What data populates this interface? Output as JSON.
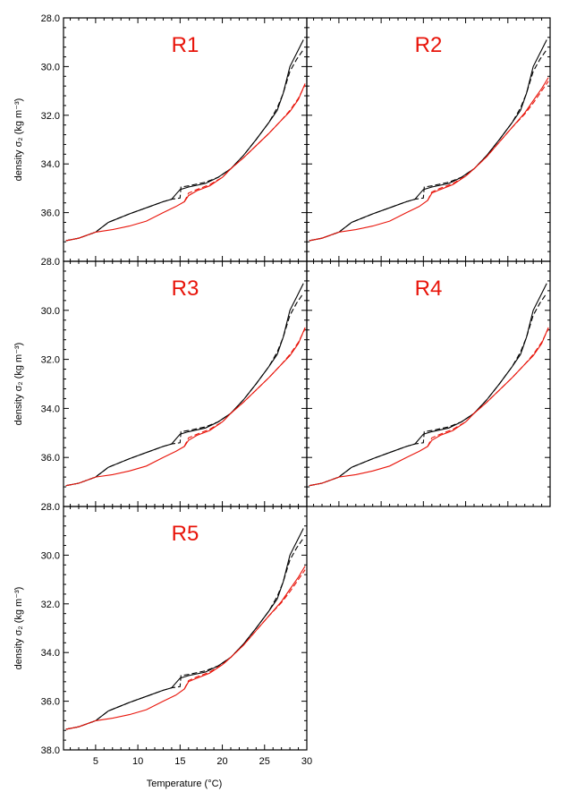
{
  "figure": {
    "xlabel": "Temperature (°C)",
    "ylabel": "density σ₂ (kg m⁻³)",
    "label_color": "#e8140a"
  },
  "chart_data": [
    {
      "type": "line",
      "panel_label": "R1",
      "xlim": [
        1.2,
        30
      ],
      "ylim": [
        38.0,
        28.0
      ],
      "xticks": [
        5,
        10,
        15,
        20,
        25,
        30
      ],
      "yticks": [
        28.0,
        30.0,
        32.0,
        34.0,
        36.0,
        38.0
      ],
      "ytick_labels": [
        "28.0",
        "30.0",
        "32.0",
        "34.0",
        "36.0",
        ""
      ],
      "series": [
        {
          "color": "#000000",
          "dash": "solid",
          "x": [
            1.5,
            3,
            5,
            6.5,
            9,
            11,
            13,
            14,
            14.5,
            15,
            16,
            18,
            19.5,
            21,
            22.5,
            24,
            25.5,
            26.5,
            27.2,
            28,
            28.8,
            29.6
          ],
          "y": [
            37.15,
            37.05,
            36.8,
            36.4,
            36.05,
            35.8,
            35.55,
            35.45,
            35.25,
            35.05,
            34.95,
            34.8,
            34.55,
            34.2,
            33.65,
            33.0,
            32.3,
            31.8,
            31.1,
            30.0,
            29.45,
            28.9
          ]
        },
        {
          "color": "#000000",
          "dash": "dashed",
          "x": [
            1.5,
            3,
            5,
            6.5,
            9,
            11,
            13,
            14,
            15,
            15.1,
            16,
            18,
            19.5,
            21,
            22.5,
            24,
            25.5,
            26.5,
            27.2,
            28,
            28.8,
            29.6
          ],
          "y": [
            37.15,
            37.05,
            36.8,
            36.4,
            36.05,
            35.8,
            35.55,
            35.45,
            35.4,
            34.95,
            34.9,
            34.75,
            34.55,
            34.2,
            33.65,
            33.0,
            32.3,
            31.7,
            31.1,
            30.2,
            29.7,
            29.3
          ]
        },
        {
          "color": "#e8140a",
          "dash": "solid",
          "x": [
            1.5,
            3,
            5,
            7,
            9,
            11,
            13,
            14.5,
            15.5,
            16,
            17,
            18.5,
            20,
            21,
            22.5,
            24,
            25.5,
            27,
            28,
            29,
            29.8
          ],
          "y": [
            37.15,
            37.05,
            36.8,
            36.7,
            36.55,
            36.35,
            36.0,
            35.75,
            35.55,
            35.3,
            35.1,
            34.9,
            34.55,
            34.2,
            33.75,
            33.25,
            32.75,
            32.2,
            31.85,
            31.35,
            30.7
          ]
        },
        {
          "color": "#e8140a",
          "dash": "dashed",
          "x": [
            15.5,
            16,
            17,
            18.5,
            20,
            21,
            22.5,
            24,
            25.5,
            27,
            28,
            29,
            29.8
          ],
          "y": [
            35.55,
            35.2,
            35.05,
            34.85,
            34.55,
            34.2,
            33.75,
            33.25,
            32.75,
            32.2,
            31.8,
            31.3,
            30.75
          ]
        }
      ]
    },
    {
      "type": "line",
      "panel_label": "R2",
      "xlim": [
        1.2,
        30
      ],
      "ylim": [
        38.0,
        28.0
      ],
      "xticks": [
        5,
        10,
        15,
        20,
        25,
        30
      ],
      "yticks": [
        28.0,
        30.0,
        32.0,
        34.0,
        36.0,
        38.0
      ],
      "ytick_labels": [
        "",
        "",
        "",
        "",
        "",
        ""
      ],
      "series": [
        {
          "color": "#000000",
          "dash": "solid",
          "x": [
            1.5,
            3,
            5,
            6.5,
            9,
            11,
            13,
            14,
            14.5,
            15,
            16,
            18,
            19.5,
            21,
            22.5,
            24,
            25.5,
            26.5,
            27.2,
            28,
            28.8,
            29.6
          ],
          "y": [
            37.15,
            37.05,
            36.8,
            36.4,
            36.05,
            35.8,
            35.55,
            35.45,
            35.25,
            35.05,
            34.95,
            34.8,
            34.55,
            34.2,
            33.65,
            33.0,
            32.3,
            31.8,
            31.1,
            30.0,
            29.45,
            28.9
          ]
        },
        {
          "color": "#000000",
          "dash": "dashed",
          "x": [
            1.5,
            3,
            5,
            6.5,
            9,
            11,
            13,
            14,
            15,
            15.1,
            16,
            18,
            19.5,
            21,
            22.5,
            24,
            25.5,
            26.5,
            27.2,
            28,
            28.8,
            29.6
          ],
          "y": [
            37.15,
            37.05,
            36.8,
            36.4,
            36.05,
            35.8,
            35.55,
            35.45,
            35.4,
            34.95,
            34.9,
            34.75,
            34.55,
            34.2,
            33.65,
            33.0,
            32.3,
            31.7,
            31.1,
            30.2,
            29.7,
            29.3
          ]
        },
        {
          "color": "#e8140a",
          "dash": "solid",
          "x": [
            1.5,
            3,
            5,
            7,
            9,
            11,
            13,
            14.5,
            15.5,
            16,
            17,
            18.5,
            20,
            21,
            22.5,
            24,
            25.5,
            27,
            28,
            29,
            29.8
          ],
          "y": [
            37.15,
            37.05,
            36.8,
            36.7,
            36.55,
            36.35,
            36.0,
            35.75,
            35.5,
            35.2,
            35.05,
            34.85,
            34.5,
            34.2,
            33.7,
            33.1,
            32.5,
            31.9,
            31.4,
            30.9,
            30.45
          ]
        },
        {
          "color": "#e8140a",
          "dash": "dashed",
          "x": [
            15.5,
            16,
            17,
            18.5,
            20,
            21,
            22.5,
            24,
            25.5,
            27,
            28,
            29,
            29.8
          ],
          "y": [
            35.5,
            35.15,
            35.0,
            34.8,
            34.5,
            34.2,
            33.7,
            33.1,
            32.5,
            31.95,
            31.5,
            31.0,
            30.6
          ]
        }
      ]
    },
    {
      "type": "line",
      "panel_label": "R3",
      "xlim": [
        1.2,
        30
      ],
      "ylim": [
        38.0,
        28.0
      ],
      "xticks": [
        5,
        10,
        15,
        20,
        25,
        30
      ],
      "yticks": [
        28.0,
        30.0,
        32.0,
        34.0,
        36.0,
        38.0
      ],
      "ytick_labels": [
        "28.0",
        "30.0",
        "32.0",
        "34.0",
        "36.0",
        ""
      ],
      "series": [
        {
          "color": "#000000",
          "dash": "solid",
          "x": [
            1.5,
            3,
            5,
            6.5,
            9,
            11,
            13,
            14,
            14.5,
            15,
            16,
            18,
            19.5,
            21,
            22.5,
            24,
            25.5,
            26.5,
            27.2,
            28,
            28.8,
            29.6
          ],
          "y": [
            37.15,
            37.05,
            36.8,
            36.4,
            36.05,
            35.8,
            35.55,
            35.45,
            35.25,
            35.05,
            34.95,
            34.8,
            34.55,
            34.2,
            33.65,
            33.0,
            32.3,
            31.8,
            31.1,
            30.0,
            29.45,
            28.9
          ]
        },
        {
          "color": "#000000",
          "dash": "dashed",
          "x": [
            1.5,
            3,
            5,
            6.5,
            9,
            11,
            13,
            14,
            15,
            15.1,
            16,
            18,
            19.5,
            21,
            22.5,
            24,
            25.5,
            26.5,
            27.2,
            28,
            28.8,
            29.6
          ],
          "y": [
            37.15,
            37.05,
            36.8,
            36.4,
            36.05,
            35.8,
            35.55,
            35.45,
            35.4,
            34.95,
            34.9,
            34.75,
            34.55,
            34.2,
            33.65,
            33.0,
            32.3,
            31.7,
            31.1,
            30.2,
            29.7,
            29.3
          ]
        },
        {
          "color": "#e8140a",
          "dash": "solid",
          "x": [
            1.5,
            3,
            5,
            7,
            9,
            11,
            13,
            14.5,
            15.5,
            16,
            17,
            18.5,
            20,
            21,
            22.5,
            24,
            25.5,
            27,
            28,
            29,
            29.8
          ],
          "y": [
            37.15,
            37.05,
            36.8,
            36.7,
            36.55,
            36.35,
            36.0,
            35.75,
            35.55,
            35.3,
            35.1,
            34.9,
            34.55,
            34.2,
            33.75,
            33.25,
            32.75,
            32.2,
            31.85,
            31.35,
            30.7
          ]
        },
        {
          "color": "#e8140a",
          "dash": "dashed",
          "x": [
            15.5,
            16,
            17,
            18.5,
            20,
            21,
            22.5,
            24,
            25.5,
            27,
            28,
            29,
            29.8
          ],
          "y": [
            35.55,
            35.2,
            35.05,
            34.85,
            34.55,
            34.2,
            33.75,
            33.25,
            32.75,
            32.2,
            31.8,
            31.3,
            30.75
          ]
        }
      ]
    },
    {
      "type": "line",
      "panel_label": "R4",
      "xlim": [
        1.2,
        30
      ],
      "ylim": [
        38.0,
        28.0
      ],
      "xticks": [
        5,
        10,
        15,
        20,
        25,
        30
      ],
      "yticks": [
        28.0,
        30.0,
        32.0,
        34.0,
        36.0,
        38.0
      ],
      "ytick_labels": [
        "",
        "",
        "",
        "",
        "",
        ""
      ],
      "series": [
        {
          "color": "#000000",
          "dash": "solid",
          "x": [
            1.5,
            3,
            5,
            6.5,
            9,
            11,
            13,
            14,
            14.5,
            15,
            16,
            18,
            19.5,
            21,
            22.5,
            24,
            25.5,
            26.5,
            27.2,
            28,
            28.8,
            29.6
          ],
          "y": [
            37.15,
            37.05,
            36.8,
            36.4,
            36.05,
            35.8,
            35.55,
            35.45,
            35.25,
            35.05,
            34.95,
            34.8,
            34.55,
            34.2,
            33.65,
            33.0,
            32.3,
            31.8,
            31.1,
            30.0,
            29.45,
            28.9
          ]
        },
        {
          "color": "#000000",
          "dash": "dashed",
          "x": [
            1.5,
            3,
            5,
            6.5,
            9,
            11,
            13,
            14,
            15,
            15.1,
            16,
            18,
            19.5,
            21,
            22.5,
            24,
            25.5,
            26.5,
            27.2,
            28,
            28.8,
            29.6
          ],
          "y": [
            37.15,
            37.05,
            36.8,
            36.4,
            36.05,
            35.8,
            35.55,
            35.45,
            35.4,
            34.95,
            34.9,
            34.75,
            34.55,
            34.2,
            33.65,
            33.0,
            32.3,
            31.7,
            31.1,
            30.2,
            29.7,
            29.3
          ]
        },
        {
          "color": "#e8140a",
          "dash": "solid",
          "x": [
            1.5,
            3,
            5,
            7,
            9,
            11,
            13,
            14.5,
            15.5,
            16,
            17,
            18.5,
            20,
            21,
            22.5,
            24,
            25.5,
            27,
            28,
            29,
            29.8
          ],
          "y": [
            37.15,
            37.05,
            36.8,
            36.7,
            36.55,
            36.35,
            36.0,
            35.75,
            35.55,
            35.3,
            35.1,
            34.9,
            34.55,
            34.2,
            33.75,
            33.25,
            32.75,
            32.2,
            31.85,
            31.35,
            30.7
          ]
        },
        {
          "color": "#e8140a",
          "dash": "dashed",
          "x": [
            15.5,
            16,
            17,
            18.5,
            20,
            21,
            22.5,
            24,
            25.5,
            27,
            28,
            29,
            29.8
          ],
          "y": [
            35.55,
            35.2,
            35.05,
            34.85,
            34.55,
            34.2,
            33.75,
            33.25,
            32.75,
            32.2,
            31.8,
            31.3,
            30.75
          ]
        }
      ]
    },
    {
      "type": "line",
      "panel_label": "R5",
      "xlim": [
        1.2,
        30
      ],
      "ylim": [
        38.0,
        28.0
      ],
      "xticks": [
        5,
        10,
        15,
        20,
        25,
        30
      ],
      "xtick_labels": [
        "5",
        "10",
        "15",
        "20",
        "25",
        "30"
      ],
      "yticks": [
        28.0,
        30.0,
        32.0,
        34.0,
        36.0,
        38.0
      ],
      "ytick_labels": [
        "28.0",
        "30.0",
        "32.0",
        "34.0",
        "36.0",
        "38.0"
      ],
      "series": [
        {
          "color": "#000000",
          "dash": "solid",
          "x": [
            1.5,
            3,
            5,
            6.5,
            9,
            11,
            13,
            14,
            14.5,
            15,
            16,
            18,
            19.5,
            21,
            22.5,
            24,
            25.5,
            26.5,
            27.2,
            28,
            28.8,
            29.6
          ],
          "y": [
            37.15,
            37.05,
            36.8,
            36.4,
            36.05,
            35.8,
            35.55,
            35.45,
            35.25,
            35.05,
            34.95,
            34.8,
            34.55,
            34.2,
            33.65,
            33.0,
            32.3,
            31.8,
            31.1,
            30.0,
            29.45,
            28.9
          ]
        },
        {
          "color": "#000000",
          "dash": "dashed",
          "x": [
            1.5,
            3,
            5,
            6.5,
            9,
            11,
            13,
            14,
            15,
            15.1,
            16,
            18,
            19.5,
            21,
            22.5,
            24,
            25.5,
            26.5,
            27.2,
            28,
            28.8,
            29.6
          ],
          "y": [
            37.15,
            37.05,
            36.8,
            36.4,
            36.05,
            35.8,
            35.55,
            35.45,
            35.4,
            34.95,
            34.9,
            34.75,
            34.55,
            34.2,
            33.65,
            33.0,
            32.3,
            31.7,
            31.1,
            30.2,
            29.7,
            29.3
          ]
        },
        {
          "color": "#e8140a",
          "dash": "solid",
          "x": [
            1.5,
            3,
            5,
            7,
            9,
            11,
            13,
            14.5,
            15.5,
            16,
            17,
            18.5,
            20,
            21,
            22.5,
            24,
            25.5,
            27,
            28,
            29,
            29.8
          ],
          "y": [
            37.15,
            37.05,
            36.8,
            36.7,
            36.55,
            36.35,
            36.0,
            35.75,
            35.5,
            35.2,
            35.05,
            34.85,
            34.5,
            34.2,
            33.7,
            33.1,
            32.5,
            31.9,
            31.4,
            30.9,
            30.45
          ]
        },
        {
          "color": "#e8140a",
          "dash": "dashed",
          "x": [
            15.5,
            16,
            17,
            18.5,
            20,
            21,
            22.5,
            24,
            25.5,
            27,
            28,
            29,
            29.8
          ],
          "y": [
            35.5,
            35.15,
            35.0,
            34.8,
            34.5,
            34.2,
            33.7,
            33.1,
            32.5,
            31.95,
            31.5,
            31.0,
            30.6
          ]
        }
      ]
    }
  ]
}
